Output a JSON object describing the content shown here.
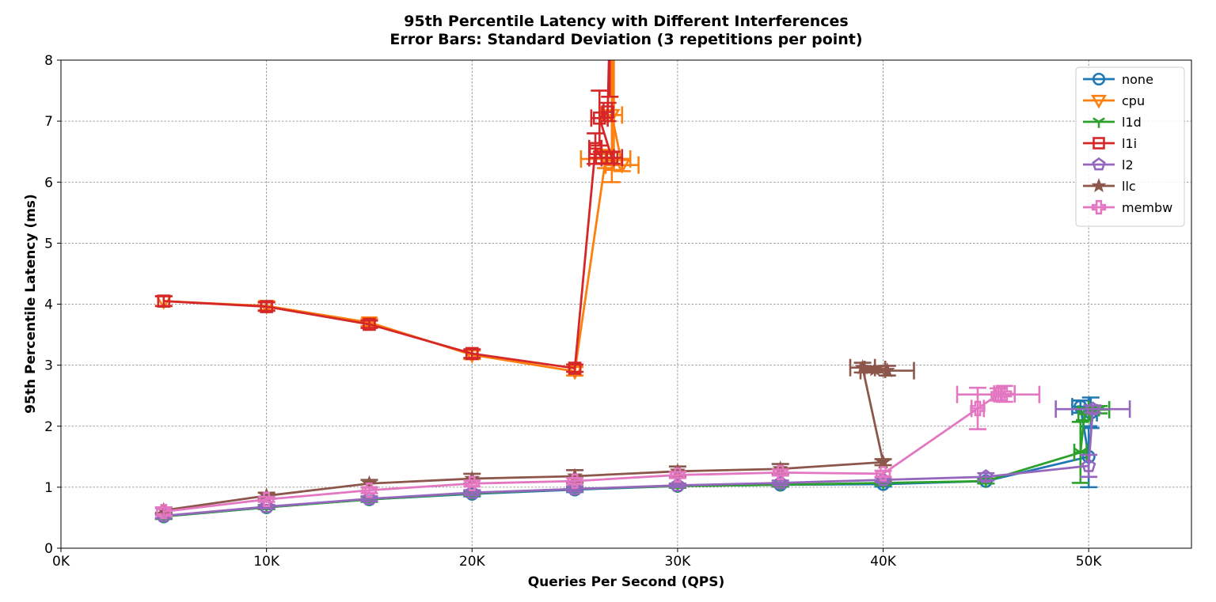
{
  "chart_data": {
    "type": "line",
    "title": "95th Percentile Latency with Different Interferences",
    "subtitle": "Error Bars: Standard Deviation (3 repetitions per point)",
    "xlabel": "Queries Per Second (QPS)",
    "ylabel": "95th Percentile Latency (ms)",
    "xlim": [
      0,
      55000
    ],
    "ylim": [
      0,
      8
    ],
    "xticks": [
      0,
      10000,
      20000,
      30000,
      40000,
      50000
    ],
    "xtick_labels": [
      "0K",
      "10K",
      "20K",
      "30K",
      "40K",
      "50K"
    ],
    "yticks": [
      0,
      1,
      2,
      3,
      4,
      5,
      6,
      7,
      8
    ],
    "ytick_labels": [
      "0",
      "1",
      "2",
      "3",
      "4",
      "5",
      "6",
      "7",
      "8"
    ],
    "grid": true,
    "legend_position": "top-right",
    "series": [
      {
        "name": "none",
        "color": "#1f77b4",
        "marker": "circle",
        "points": [
          {
            "x": 5000,
            "y": 0.52,
            "yerr": 0.04
          },
          {
            "x": 10000,
            "y": 0.67,
            "yerr": 0.03
          },
          {
            "x": 15000,
            "y": 0.8,
            "yerr": 0.04
          },
          {
            "x": 20000,
            "y": 0.89,
            "yerr": 0.04
          },
          {
            "x": 25000,
            "y": 0.96,
            "yerr": 0.04
          },
          {
            "x": 30000,
            "y": 1.02,
            "yerr": 0.03
          },
          {
            "x": 35000,
            "y": 1.04,
            "yerr": 0.03
          },
          {
            "x": 40000,
            "y": 1.05,
            "yerr": 0.04
          },
          {
            "x": 45000,
            "y": 1.1,
            "yerr": 0.04
          },
          {
            "x": 50000,
            "y": 1.5,
            "yerr": 0.5
          },
          {
            "x": 49600,
            "y": 2.32,
            "yerr": 0.1,
            "xerr": 400
          },
          {
            "x": 50100,
            "y": 2.22,
            "yerr": 0.25,
            "xerr": 300
          }
        ]
      },
      {
        "name": "cpu",
        "color": "#ff7f0e",
        "marker": "triangle-down",
        "points": [
          {
            "x": 5000,
            "y": 4.05,
            "yerr": 0.08
          },
          {
            "x": 10000,
            "y": 3.97,
            "yerr": 0.07
          },
          {
            "x": 15000,
            "y": 3.7,
            "yerr": 0.06
          },
          {
            "x": 20000,
            "y": 3.17,
            "yerr": 0.07
          },
          {
            "x": 25000,
            "y": 2.9,
            "yerr": 0.07
          },
          {
            "x": 26500,
            "y": 6.38,
            "yerr": 0.15,
            "xerr": 1200
          },
          {
            "x": 27300,
            "y": 6.28,
            "yerr": 0.1,
            "xerr": 800
          },
          {
            "x": 26800,
            "y": 7.1,
            "yerr": 1.1,
            "xerr": 500
          },
          {
            "x": 26900,
            "y": 8.6,
            "yerr": 2.4,
            "xerr": 100
          }
        ]
      },
      {
        "name": "l1d",
        "color": "#2ca02c",
        "marker": "tri-down",
        "points": [
          {
            "x": 5000,
            "y": 0.52,
            "yerr": 0.04
          },
          {
            "x": 10000,
            "y": 0.67,
            "yerr": 0.03
          },
          {
            "x": 15000,
            "y": 0.8,
            "yerr": 0.04
          },
          {
            "x": 20000,
            "y": 0.9,
            "yerr": 0.04
          },
          {
            "x": 25000,
            "y": 0.97,
            "yerr": 0.04
          },
          {
            "x": 30000,
            "y": 1.02,
            "yerr": 0.03
          },
          {
            "x": 35000,
            "y": 1.04,
            "yerr": 0.03
          },
          {
            "x": 40000,
            "y": 1.07,
            "yerr": 0.04
          },
          {
            "x": 45000,
            "y": 1.1,
            "yerr": 0.04
          },
          {
            "x": 49600,
            "y": 1.57,
            "yerr": 0.5,
            "xerr": 300
          },
          {
            "x": 49800,
            "y": 2.2,
            "yerr": 0.1,
            "xerr": 300
          },
          {
            "x": 50500,
            "y": 2.27,
            "yerr": 0.06,
            "xerr": 500
          }
        ]
      },
      {
        "name": "l1i",
        "color": "#d62728",
        "marker": "square",
        "points": [
          {
            "x": 5000,
            "y": 4.05,
            "yerr": 0.08
          },
          {
            "x": 10000,
            "y": 3.96,
            "yerr": 0.07
          },
          {
            "x": 15000,
            "y": 3.67,
            "yerr": 0.06
          },
          {
            "x": 20000,
            "y": 3.19,
            "yerr": 0.07
          },
          {
            "x": 25000,
            "y": 2.95,
            "yerr": 0.06
          },
          {
            "x": 26000,
            "y": 6.55,
            "yerr": 0.25,
            "xerr": 300
          },
          {
            "x": 26300,
            "y": 6.4,
            "yerr": 0.1,
            "xerr": 600
          },
          {
            "x": 26800,
            "y": 6.4,
            "yerr": 0.1,
            "xerr": 500
          },
          {
            "x": 26200,
            "y": 7.05,
            "yerr": 0.45,
            "xerr": 400
          },
          {
            "x": 26600,
            "y": 7.15,
            "yerr": 0.15,
            "xerr": 200
          },
          {
            "x": 26700,
            "y": 8.6,
            "yerr": 1.2,
            "xerr": 100
          }
        ]
      },
      {
        "name": "l2",
        "color": "#9467bd",
        "marker": "pentagon",
        "points": [
          {
            "x": 5000,
            "y": 0.53,
            "yerr": 0.04
          },
          {
            "x": 10000,
            "y": 0.68,
            "yerr": 0.03
          },
          {
            "x": 15000,
            "y": 0.81,
            "yerr": 0.04
          },
          {
            "x": 20000,
            "y": 0.91,
            "yerr": 0.04
          },
          {
            "x": 25000,
            "y": 0.97,
            "yerr": 0.04
          },
          {
            "x": 30000,
            "y": 1.03,
            "yerr": 0.03
          },
          {
            "x": 35000,
            "y": 1.07,
            "yerr": 0.04
          },
          {
            "x": 40000,
            "y": 1.12,
            "yerr": 0.04
          },
          {
            "x": 45000,
            "y": 1.17,
            "yerr": 0.06
          },
          {
            "x": 50000,
            "y": 1.35,
            "yerr": 0.18
          },
          {
            "x": 50200,
            "y": 2.28,
            "yerr": 0.06,
            "xerr": 1800
          }
        ]
      },
      {
        "name": "llc",
        "color": "#8c564b",
        "marker": "star",
        "points": [
          {
            "x": 5000,
            "y": 0.62,
            "yerr": 0.04
          },
          {
            "x": 10000,
            "y": 0.86,
            "yerr": 0.05
          },
          {
            "x": 15000,
            "y": 1.06,
            "yerr": 0.06
          },
          {
            "x": 20000,
            "y": 1.14,
            "yerr": 0.08
          },
          {
            "x": 25000,
            "y": 1.18,
            "yerr": 0.1
          },
          {
            "x": 30000,
            "y": 1.26,
            "yerr": 0.08
          },
          {
            "x": 35000,
            "y": 1.3,
            "yerr": 0.08
          },
          {
            "x": 40000,
            "y": 1.41,
            "yerr": 0.05
          },
          {
            "x": 39000,
            "y": 2.96,
            "yerr": 0.08,
            "xerr": 600
          },
          {
            "x": 39600,
            "y": 2.93,
            "yerr": 0.05,
            "xerr": 500
          },
          {
            "x": 40200,
            "y": 2.91,
            "yerr": 0.08,
            "xerr": 1300
          }
        ]
      },
      {
        "name": "membw",
        "color": "#e377c2",
        "marker": "plus-filled",
        "points": [
          {
            "x": 5000,
            "y": 0.6,
            "yerr": 0.07
          },
          {
            "x": 10000,
            "y": 0.8,
            "yerr": 0.04
          },
          {
            "x": 15000,
            "y": 0.95,
            "yerr": 0.05
          },
          {
            "x": 20000,
            "y": 1.06,
            "yerr": 0.05
          },
          {
            "x": 25000,
            "y": 1.1,
            "yerr": 0.05
          },
          {
            "x": 30000,
            "y": 1.2,
            "yerr": 0.05
          },
          {
            "x": 35000,
            "y": 1.24,
            "yerr": 0.05
          },
          {
            "x": 40000,
            "y": 1.22,
            "yerr": 0.05
          },
          {
            "x": 44600,
            "y": 2.29,
            "yerr": 0.34,
            "xerr": 300
          },
          {
            "x": 45600,
            "y": 2.52,
            "yerr": 0.1,
            "xerr": 2000
          },
          {
            "x": 45900,
            "y": 2.53,
            "yerr": 0.13,
            "xerr": 500
          }
        ]
      }
    ]
  }
}
